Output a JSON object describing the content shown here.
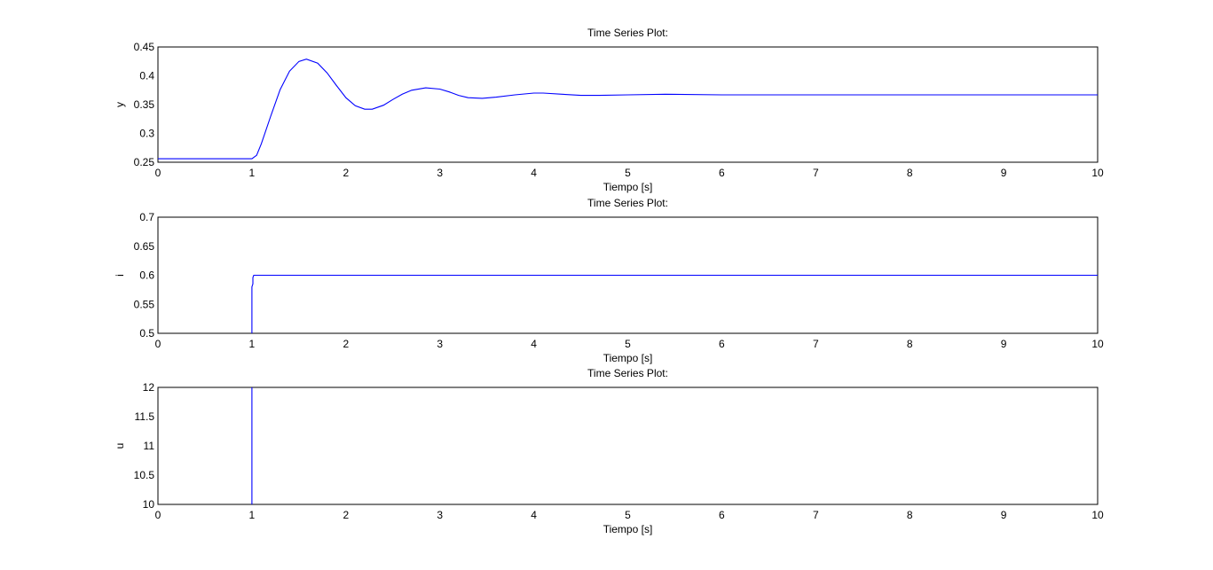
{
  "chart_data": [
    {
      "type": "line",
      "title": "Time Series Plot:",
      "xlabel": "Tiempo [s]",
      "ylabel": "y",
      "xlim": [
        0,
        10
      ],
      "ylim": [
        0.25,
        0.45
      ],
      "xticks": [
        "0",
        "1",
        "2",
        "3",
        "4",
        "5",
        "6",
        "7",
        "8",
        "9",
        "10"
      ],
      "yticks": [
        "0.25",
        "0.3",
        "0.35",
        "0.4",
        "0.45"
      ],
      "grid": true,
      "series": [
        {
          "color": "#0000ff",
          "x": [
            0,
            1.0,
            1.05,
            1.1,
            1.2,
            1.3,
            1.4,
            1.5,
            1.58,
            1.7,
            1.8,
            1.9,
            2.0,
            2.1,
            2.2,
            2.28,
            2.4,
            2.5,
            2.6,
            2.7,
            2.85,
            3.0,
            3.1,
            3.2,
            3.3,
            3.45,
            3.6,
            3.8,
            4.0,
            4.1,
            4.3,
            4.5,
            4.7,
            5.0,
            5.4,
            6.0,
            7.0,
            8.0,
            9.0,
            10.0
          ],
          "y": [
            0.256,
            0.256,
            0.262,
            0.282,
            0.33,
            0.376,
            0.408,
            0.425,
            0.429,
            0.422,
            0.405,
            0.383,
            0.362,
            0.348,
            0.342,
            0.342,
            0.349,
            0.359,
            0.368,
            0.375,
            0.379,
            0.377,
            0.372,
            0.366,
            0.362,
            0.361,
            0.363,
            0.367,
            0.37,
            0.37,
            0.368,
            0.366,
            0.366,
            0.367,
            0.368,
            0.367,
            0.367,
            0.367,
            0.367,
            0.367
          ]
        }
      ]
    },
    {
      "type": "line",
      "title": "Time Series Plot:",
      "xlabel": "Tiempo [s]",
      "ylabel": "i",
      "xlim": [
        0,
        10
      ],
      "ylim": [
        0.5,
        0.7
      ],
      "xticks": [
        "0",
        "1",
        "2",
        "3",
        "4",
        "5",
        "6",
        "7",
        "8",
        "9",
        "10"
      ],
      "yticks": [
        "0.5",
        "0.55",
        "0.6",
        "0.65",
        "0.7"
      ],
      "grid": true,
      "series": [
        {
          "color": "#0000ff",
          "x": [
            1.0,
            1.0,
            1.01,
            1.01,
            1.02,
            10.0
          ],
          "y": [
            0.5,
            0.58,
            0.585,
            0.596,
            0.6,
            0.6
          ]
        }
      ]
    },
    {
      "type": "line",
      "title": "Time Series Plot:",
      "xlabel": "Tiempo [s]",
      "ylabel": "u",
      "xlim": [
        0,
        10
      ],
      "ylim": [
        10,
        12
      ],
      "xticks": [
        "0",
        "1",
        "2",
        "3",
        "4",
        "5",
        "6",
        "7",
        "8",
        "9",
        "10"
      ],
      "yticks": [
        "10",
        "10.5",
        "11",
        "11.5",
        "12"
      ],
      "grid": true,
      "series": [
        {
          "color": "#0000ff",
          "x": [
            1.0,
            1.0
          ],
          "y": [
            10,
            12
          ]
        }
      ]
    }
  ]
}
